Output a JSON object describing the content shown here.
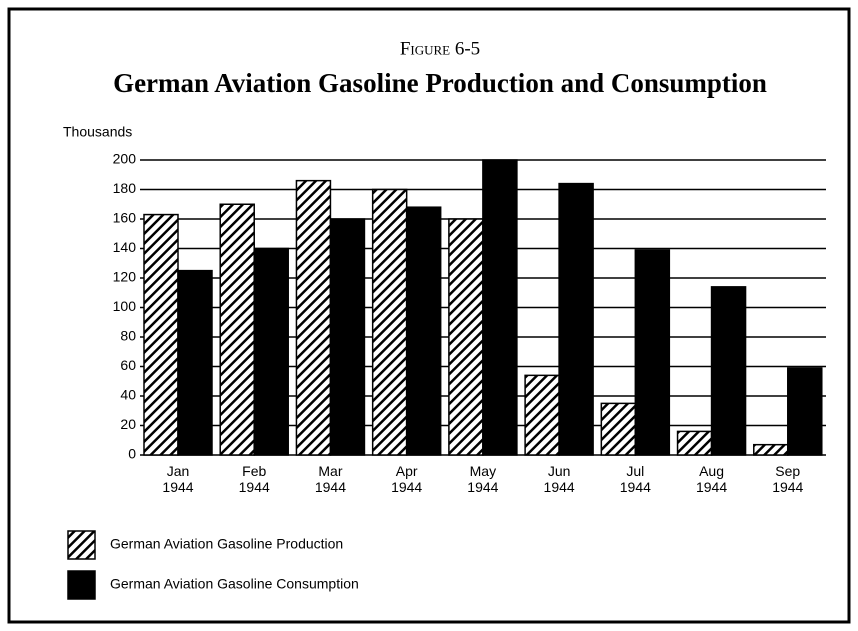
{
  "chart_data": {
    "type": "bar",
    "figure_label": "Figure 6-5",
    "title": "German Aviation Gasoline Production and Consumption",
    "ylabel": "Thousands",
    "categories": [
      "Jan 1944",
      "Feb 1944",
      "Mar 1944",
      "Apr 1944",
      "May 1944",
      "Jun 1944",
      "Jul 1944",
      "Aug 1944",
      "Sep 1944"
    ],
    "series": [
      {
        "name": "German Aviation Gasoline Production",
        "color": "hatched",
        "values": [
          163,
          170,
          186,
          180,
          160,
          54,
          35,
          16,
          7
        ]
      },
      {
        "name": "German Aviation Gasoline Consumption",
        "color": "#000000",
        "values": [
          125,
          140,
          160,
          168,
          200,
          184,
          139,
          114,
          59
        ]
      }
    ],
    "ylim": [
      0,
      200
    ],
    "yticks": [
      0,
      20,
      40,
      60,
      80,
      100,
      120,
      140,
      160,
      180,
      200
    ],
    "grid": true
  }
}
